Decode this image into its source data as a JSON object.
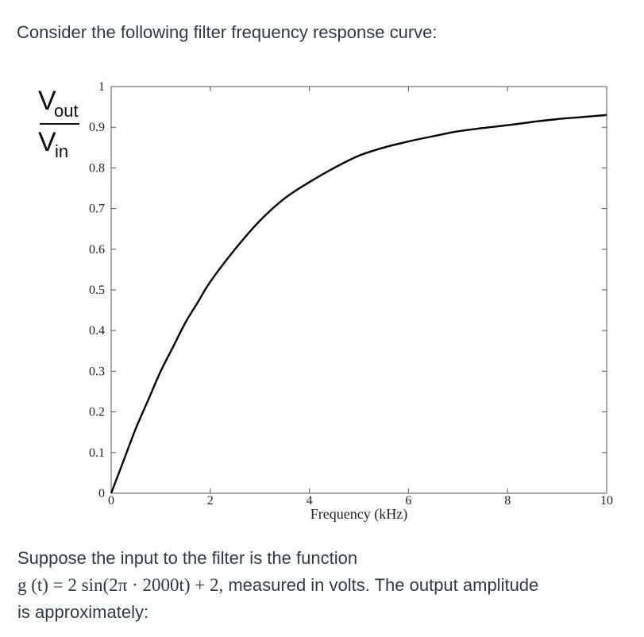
{
  "prompt": "Consider the following filter frequency response curve:",
  "chart_data": {
    "type": "line",
    "title": "",
    "xlabel": "Frequency  (kHz)",
    "ylabel": {
      "main": "V",
      "top_sub": "out",
      "bottom_sub": "in"
    },
    "xlim": [
      0,
      10
    ],
    "ylim": [
      0,
      1
    ],
    "x_ticks": [
      "0",
      "2",
      "4",
      "6",
      "8",
      "10"
    ],
    "y_ticks": [
      "0",
      "0.1",
      "0.2",
      "0.3",
      "0.4",
      "0.5",
      "0.6",
      "0.7",
      "0.8",
      "0.9",
      "1"
    ],
    "grid": false,
    "series": [
      {
        "x": [
          0,
          0.25,
          0.5,
          0.75,
          1,
          1.25,
          1.5,
          1.75,
          2,
          2.5,
          3,
          3.5,
          4,
          4.5,
          5,
          5.5,
          6,
          6.5,
          7,
          7.5,
          8,
          8.5,
          9,
          9.5,
          10
        ],
        "y": [
          0,
          0.08,
          0.16,
          0.23,
          0.3,
          0.36,
          0.42,
          0.47,
          0.52,
          0.6,
          0.67,
          0.725,
          0.765,
          0.8,
          0.83,
          0.85,
          0.865,
          0.878,
          0.89,
          0.898,
          0.905,
          0.913,
          0.92,
          0.925,
          0.93
        ],
        "color": "#000000"
      }
    ]
  },
  "question": {
    "line1": "Suppose the input to the filter is the function",
    "formula": "g (t) = 2 sin(2π · 2000t) + 2,",
    "line2_rest": " measured in volts. The output amplitude",
    "line3": "is approximately:"
  }
}
